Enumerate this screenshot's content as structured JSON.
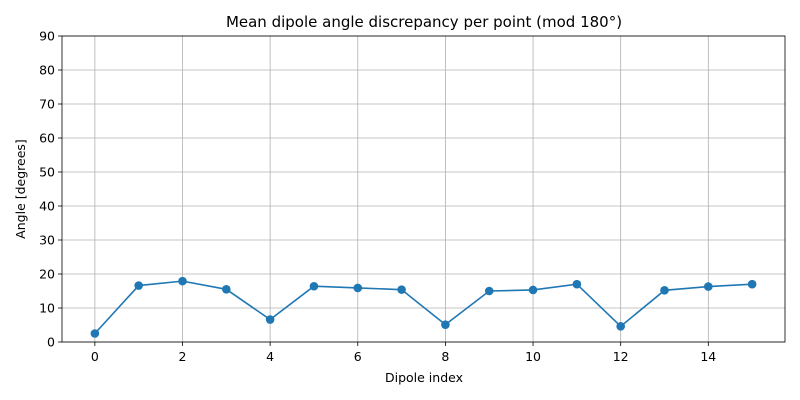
{
  "chart_data": {
    "type": "line",
    "title": "Mean dipole angle discrepancy per point (mod 180°)",
    "xlabel": "Dipole index",
    "ylabel": "Angle [degrees]",
    "xlim": [
      -0.75,
      15.75
    ],
    "ylim": [
      0,
      90
    ],
    "xticks": [
      0,
      2,
      4,
      6,
      8,
      10,
      12,
      14
    ],
    "yticks": [
      0,
      10,
      20,
      30,
      40,
      50,
      60,
      70,
      80,
      90
    ],
    "grid": true,
    "series": [
      {
        "color": "#1f77b4",
        "marker": "circle",
        "x": [
          0,
          1,
          2,
          3,
          4,
          5,
          6,
          7,
          8,
          9,
          10,
          11,
          12,
          13,
          14,
          15
        ],
        "y": [
          2.5,
          16.6,
          17.9,
          15.5,
          6.6,
          16.4,
          15.9,
          15.4,
          5.1,
          15.0,
          15.3,
          17.0,
          4.6,
          15.2,
          16.3,
          17.0
        ]
      }
    ]
  }
}
